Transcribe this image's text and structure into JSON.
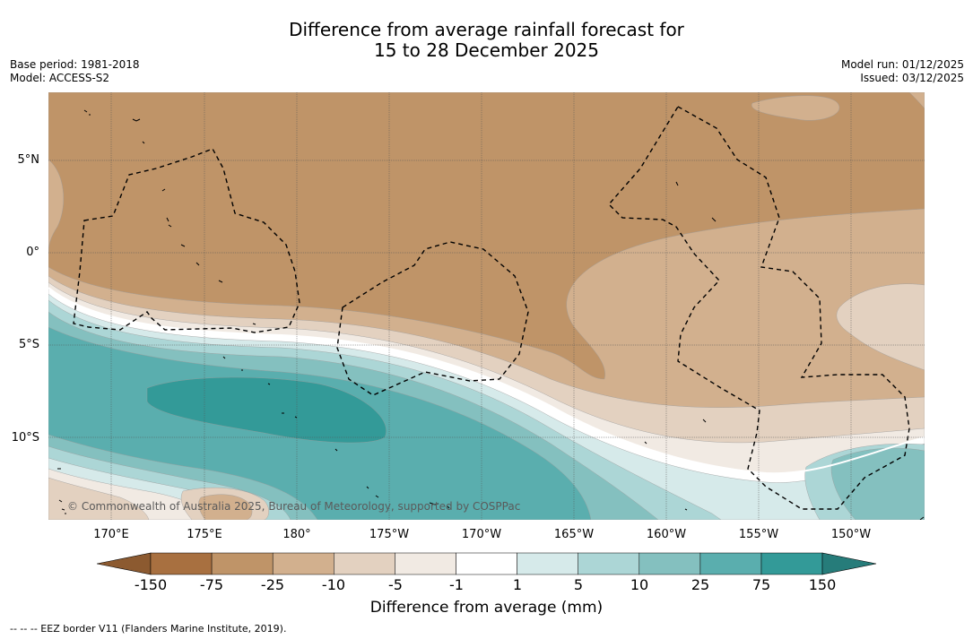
{
  "header": {
    "title_line1": "Difference from average rainfall forecast for",
    "title_line2": "15 to 28 December 2025",
    "base_period": "Base period: 1981-2018",
    "model": "Model: ACCESS-S2",
    "model_run": "Model run: 01/12/2025",
    "issued": "Issued: 03/12/2025"
  },
  "map": {
    "lat_labels": [
      "5°N",
      "0°",
      "5°S",
      "10°S"
    ],
    "lon_labels": [
      "170°E",
      "175°E",
      "180°",
      "175°W",
      "170°W",
      "165°W",
      "160°W",
      "155°W",
      "150°W"
    ],
    "copyright": "© Commonwealth of Australia 2025, Bureau of Meteorology, supported by COSPPac",
    "colors": {
      "dry150": "#a87040",
      "dry75": "#bf9468",
      "dry25": "#d2b08e",
      "dry10": "#e3d1c0",
      "dry5": "#f1eae3",
      "neutral": "#ffffff",
      "wet5": "#d6eaea",
      "wet10": "#acd6d6",
      "wet25": "#84c0bf",
      "wet75": "#5aaeae",
      "wet150": "#339a98"
    }
  },
  "colorbar": {
    "ticks": [
      "-150",
      "-75",
      "-25",
      "-10",
      "-5",
      "-1",
      "1",
      "5",
      "10",
      "25",
      "75",
      "150"
    ],
    "label": "Difference from average (mm)",
    "segment_colors": [
      "#a87040",
      "#bf9468",
      "#d2b08e",
      "#e3d1c0",
      "#f1eae3",
      "#ffffff",
      "#d6eaea",
      "#acd6d6",
      "#84c0bf",
      "#5aaeae",
      "#339a98"
    ],
    "low_arrow_color": "#8c5a30",
    "high_arrow_color": "#267c7a"
  },
  "footnote": "--  --  -- EEZ border V11 (Flanders Marine Institute, 2019)."
}
